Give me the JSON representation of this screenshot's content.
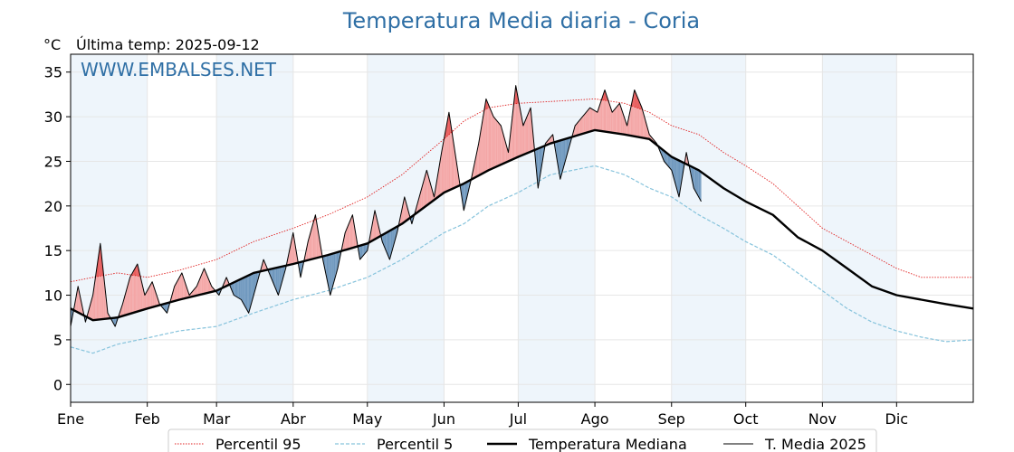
{
  "header": {
    "title": "Temperatura Media diaria - Coria",
    "unit": "°C",
    "last_update": "Última temp: 2025-09-12",
    "watermark": "WWW.EMBALSES.NET"
  },
  "colors": {
    "title": "#2f6fa5",
    "p95": "#e02020",
    "p5": "#86c3dc",
    "median": "#000000",
    "year": "#000000",
    "above_fill": "#f4a6a6",
    "above_strong_fill": "#e85c5c",
    "below_fill": "#6f98be",
    "month_band": "#eef5fb"
  },
  "chart_data": {
    "type": "line",
    "title": "Temperatura Media diaria - Coria",
    "xlabel": "",
    "ylabel": "°C",
    "ylim": [
      -2,
      37
    ],
    "xlim": [
      1,
      366
    ],
    "yticks": [
      0,
      5,
      10,
      15,
      20,
      25,
      30,
      35
    ],
    "months": [
      {
        "label": "Ene",
        "day": 1
      },
      {
        "label": "Feb",
        "day": 32
      },
      {
        "label": "Mar",
        "day": 60
      },
      {
        "label": "Abr",
        "day": 91
      },
      {
        "label": "May",
        "day": 121
      },
      {
        "label": "Jun",
        "day": 152
      },
      {
        "label": "Jul",
        "day": 182
      },
      {
        "label": "Ago",
        "day": 213
      },
      {
        "label": "Sep",
        "day": 244
      },
      {
        "label": "Oct",
        "day": 274
      },
      {
        "label": "Nov",
        "day": 305
      },
      {
        "label": "Dic",
        "day": 335
      }
    ],
    "legend_position": "bottom-center",
    "grid": true,
    "series": [
      {
        "name": "Percentil 95",
        "style": "dotted-red",
        "x": [
          1,
          10,
          20,
          32,
          45,
          60,
          75,
          91,
          105,
          121,
          135,
          152,
          160,
          170,
          182,
          195,
          213,
          225,
          235,
          244,
          255,
          265,
          274,
          285,
          295,
          305,
          315,
          325,
          335,
          345,
          355,
          366
        ],
        "y": [
          11.5,
          12,
          12.5,
          12,
          12.8,
          14,
          16,
          17.5,
          19,
          21,
          23.5,
          27.5,
          29.5,
          31,
          31.5,
          31.7,
          32,
          31.5,
          30.5,
          29,
          28,
          26,
          24.5,
          22.5,
          20,
          17.5,
          16,
          14.5,
          13,
          12,
          12,
          12
        ]
      },
      {
        "name": "Percentil 5",
        "style": "dashed-blue",
        "x": [
          1,
          10,
          20,
          32,
          45,
          60,
          75,
          91,
          105,
          121,
          135,
          152,
          160,
          170,
          182,
          195,
          213,
          225,
          235,
          244,
          255,
          265,
          274,
          285,
          295,
          305,
          315,
          325,
          335,
          345,
          355,
          366
        ],
        "y": [
          4.2,
          3.5,
          4.5,
          5.2,
          6,
          6.5,
          8,
          9.5,
          10.5,
          12,
          14,
          17,
          18,
          20,
          21.5,
          23.5,
          24.5,
          23.5,
          22,
          21,
          19,
          17.5,
          16,
          14.5,
          12.5,
          10.5,
          8.5,
          7,
          6,
          5.3,
          4.8,
          5
        ]
      },
      {
        "name": "Temperatura Mediana",
        "style": "thick-black",
        "x": [
          1,
          10,
          20,
          32,
          45,
          60,
          75,
          91,
          105,
          121,
          135,
          152,
          160,
          170,
          182,
          195,
          213,
          225,
          235,
          244,
          255,
          265,
          274,
          285,
          295,
          305,
          315,
          325,
          335,
          345,
          355,
          366
        ],
        "y": [
          8.5,
          7.2,
          7.5,
          8.5,
          9.5,
          10.5,
          12.5,
          13.5,
          14.5,
          15.8,
          18,
          21.5,
          22.5,
          24,
          25.5,
          27,
          28.5,
          28,
          27.5,
          25.5,
          24,
          22,
          20.5,
          19,
          16.5,
          15,
          13,
          11,
          10,
          9.5,
          9,
          8.5
        ]
      },
      {
        "name": "T. Media 2025",
        "style": "thin-black",
        "x": [
          1,
          4,
          7,
          10,
          13,
          16,
          19,
          22,
          25,
          28,
          31,
          34,
          37,
          40,
          43,
          46,
          49,
          52,
          55,
          58,
          61,
          64,
          67,
          70,
          73,
          76,
          79,
          82,
          85,
          88,
          91,
          94,
          97,
          100,
          103,
          106,
          109,
          112,
          115,
          118,
          121,
          124,
          127,
          130,
          133,
          136,
          139,
          142,
          145,
          148,
          151,
          154,
          157,
          160,
          163,
          166,
          169,
          172,
          175,
          178,
          181,
          184,
          187,
          190,
          193,
          196,
          199,
          202,
          205,
          208,
          211,
          214,
          217,
          220,
          223,
          226,
          229,
          232,
          235,
          238,
          241,
          244,
          247,
          250,
          253,
          256
        ],
        "y": [
          6.5,
          11,
          7,
          10,
          15.8,
          8,
          6.5,
          9,
          12,
          13.5,
          10,
          11.5,
          9,
          8,
          11,
          12.5,
          10,
          11,
          13,
          11,
          10,
          12,
          10,
          9.5,
          8,
          11,
          14,
          12,
          10,
          13,
          17,
          12,
          16,
          19,
          14,
          10,
          13,
          17,
          19,
          14,
          15,
          19.5,
          16,
          14,
          17,
          21,
          18,
          21,
          24,
          21,
          26,
          30.5,
          25,
          19.5,
          23,
          27,
          32,
          30,
          29,
          26,
          33.5,
          29,
          31,
          22,
          27,
          28,
          23,
          26,
          29,
          30,
          31,
          30.5,
          33,
          30.5,
          31.5,
          29,
          33,
          31,
          28,
          27,
          25,
          24,
          21,
          26,
          22,
          20.5
        ]
      }
    ]
  },
  "legend": [
    {
      "label": "Percentil 95",
      "style": "dotted-red"
    },
    {
      "label": "Percentil 5",
      "style": "dashed-blue"
    },
    {
      "label": "Temperatura Mediana",
      "style": "thick-black"
    },
    {
      "label": "T. Media 2025",
      "style": "thin-black"
    }
  ]
}
